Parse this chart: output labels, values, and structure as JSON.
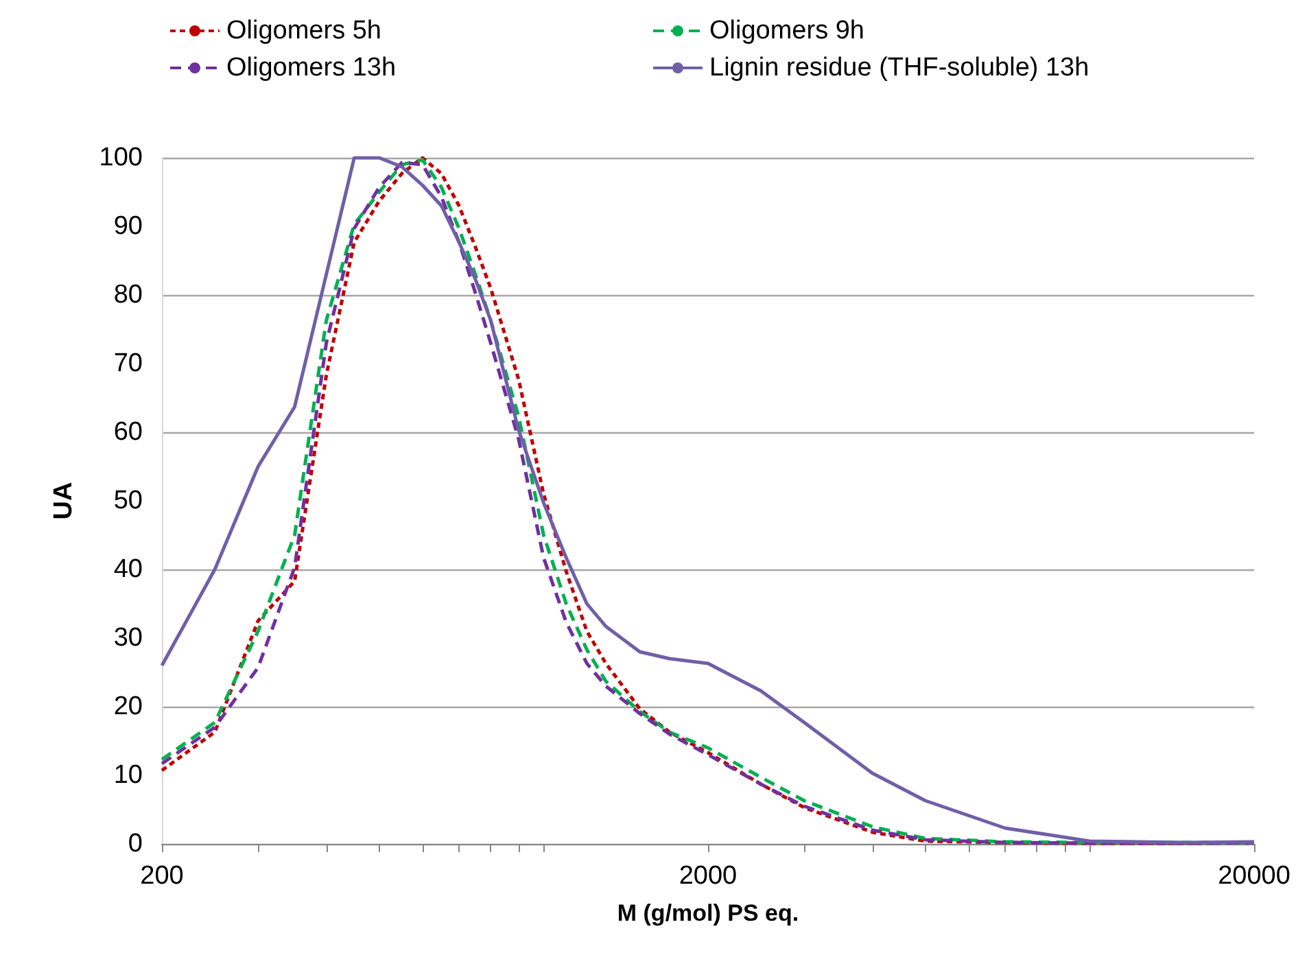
{
  "chart_data": {
    "type": "line",
    "xlabel": "M (g/mol) PS eq.",
    "ylabel": "UA",
    "log": "x",
    "grid": "y",
    "legend": "top",
    "marker": "none",
    "x": [
      200,
      250,
      300,
      350,
      400,
      450,
      500,
      550,
      600,
      650,
      700,
      750,
      800,
      900,
      1000,
      1100,
      1200,
      1300,
      1500,
      1700,
      2000,
      2500,
      3000,
      4000,
      5000,
      7000,
      10000,
      15000,
      20000
    ],
    "xlim": [
      200,
      20000
    ],
    "xticks": [
      200,
      {
        "value": 300,
        "label": null
      },
      {
        "value": 400,
        "label": null
      },
      {
        "value": 500,
        "label": null
      },
      {
        "value": 600,
        "label": null
      },
      {
        "value": 700,
        "label": null
      },
      {
        "value": 800,
        "label": null
      },
      {
        "value": 900,
        "label": null
      },
      {
        "value": 1000,
        "label": null
      },
      2000,
      {
        "value": 3000,
        "label": null
      },
      {
        "value": 4000,
        "label": null
      },
      {
        "value": 5000,
        "label": null
      },
      {
        "value": 6000,
        "label": null
      },
      {
        "value": 7000,
        "label": null
      },
      {
        "value": 8000,
        "label": null
      },
      {
        "value": 9000,
        "label": null
      },
      {
        "value": 10000,
        "label": null
      },
      20000
    ],
    "ylim": [
      0,
      100
    ],
    "yticks": [
      0,
      10,
      20,
      30,
      40,
      50,
      60,
      70,
      80,
      90,
      100
    ],
    "series": [
      {
        "name": "Oligomers 5h",
        "color": "#c00000",
        "line_style": "dotted",
        "values": [
          10.7,
          16.3,
          32.5,
          38.3,
          68.3,
          87.7,
          93.7,
          97.7,
          100,
          97.7,
          93,
          87,
          81,
          67.7,
          51,
          39.7,
          31,
          26.3,
          19.7,
          16.3,
          13.3,
          8.7,
          5.3,
          1.7,
          0.4,
          0.2,
          0.1,
          0.1,
          0.2
        ]
      },
      {
        "name": "Oligomers 9h",
        "color": "#00b050",
        "line_style": "dashed",
        "values": [
          12.3,
          17.7,
          31,
          45,
          76.3,
          90.3,
          95,
          99,
          99.7,
          95.7,
          89.7,
          83,
          76.3,
          62.3,
          45,
          35,
          28.3,
          23.7,
          19.3,
          16.3,
          14,
          9.7,
          6.3,
          2.5,
          0.8,
          0.3,
          0.2,
          0.2,
          0.2
        ]
      },
      {
        "name": "Oligomers 13h",
        "color": "#7030a0",
        "line_style": "dashed",
        "values": [
          11.7,
          17,
          25.7,
          40.3,
          73,
          89.7,
          95.7,
          99.3,
          99,
          94.3,
          87.7,
          80.3,
          73,
          59,
          41.7,
          32.3,
          26.3,
          23,
          19,
          16,
          13,
          8.7,
          5.5,
          2,
          0.6,
          0.2,
          0.1,
          0.1,
          0.2
        ]
      },
      {
        "name": "Lignin residue (THF-soluble) 13h",
        "color": "#6f5fa8",
        "line_style": "solid",
        "values": [
          26,
          40,
          55,
          63.7,
          83,
          100,
          100,
          98.7,
          96,
          93,
          87.7,
          82.3,
          76.3,
          60.3,
          49.7,
          41.7,
          35,
          31.7,
          28,
          27,
          26.3,
          22.3,
          17.7,
          10.3,
          6.3,
          2.3,
          0.4,
          0.2,
          0.3
        ]
      }
    ]
  }
}
